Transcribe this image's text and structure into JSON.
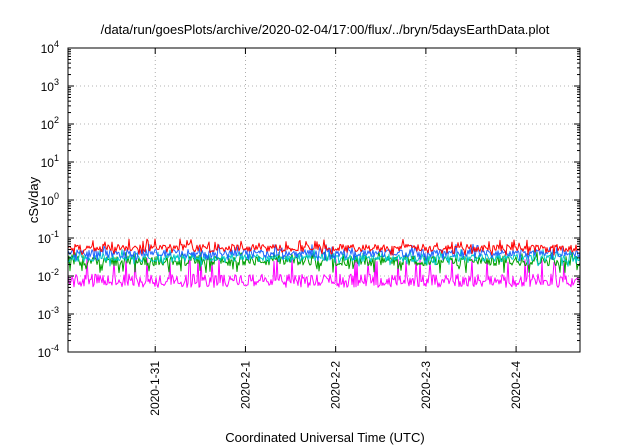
{
  "chart_data": {
    "type": "line",
    "title": "/data/run/goesPlots/archive/2020-02-04/17:00/flux/../bryn/5daysEarthData.plot",
    "xlabel": "Coordinated Universal Time (UTC)",
    "ylabel": "cSv/day",
    "yscale": "log",
    "ylim": [
      0.0001,
      10000
    ],
    "y_ticks": [
      {
        "value": 0.0001,
        "base": "10",
        "exp": "-4"
      },
      {
        "value": 0.001,
        "base": "10",
        "exp": "-3"
      },
      {
        "value": 0.01,
        "base": "10",
        "exp": "-2"
      },
      {
        "value": 0.1,
        "base": "10",
        "exp": "-1"
      },
      {
        "value": 1,
        "base": "10",
        "exp": "0"
      },
      {
        "value": 10,
        "base": "10",
        "exp": "1"
      },
      {
        "value": 100,
        "base": "10",
        "exp": "2"
      },
      {
        "value": 1000,
        "base": "10",
        "exp": "3"
      },
      {
        "value": 10000,
        "base": "10",
        "exp": "4"
      }
    ],
    "xlim": [
      "2020-01-30T00:48",
      "2020-02-04T17:00"
    ],
    "x_ticks": [
      "2020-1-31",
      "2020-2-1",
      "2020-2-2",
      "2020-2-3",
      "2020-2-4"
    ],
    "grid": true,
    "series": [
      {
        "color": "#ff0000",
        "typical": 0.055,
        "low": 0.035,
        "high": 0.095
      },
      {
        "color": "#00a000",
        "typical": 0.025,
        "low": 0.012,
        "high": 0.045
      },
      {
        "color": "#00c8c8",
        "typical": 0.03,
        "low": 0.018,
        "high": 0.05
      },
      {
        "color": "#1e64ff",
        "typical": 0.04,
        "low": 0.025,
        "high": 0.07
      },
      {
        "color": "#ff00ff",
        "typical": 0.0075,
        "low": 0.005,
        "high": 0.03
      }
    ]
  }
}
